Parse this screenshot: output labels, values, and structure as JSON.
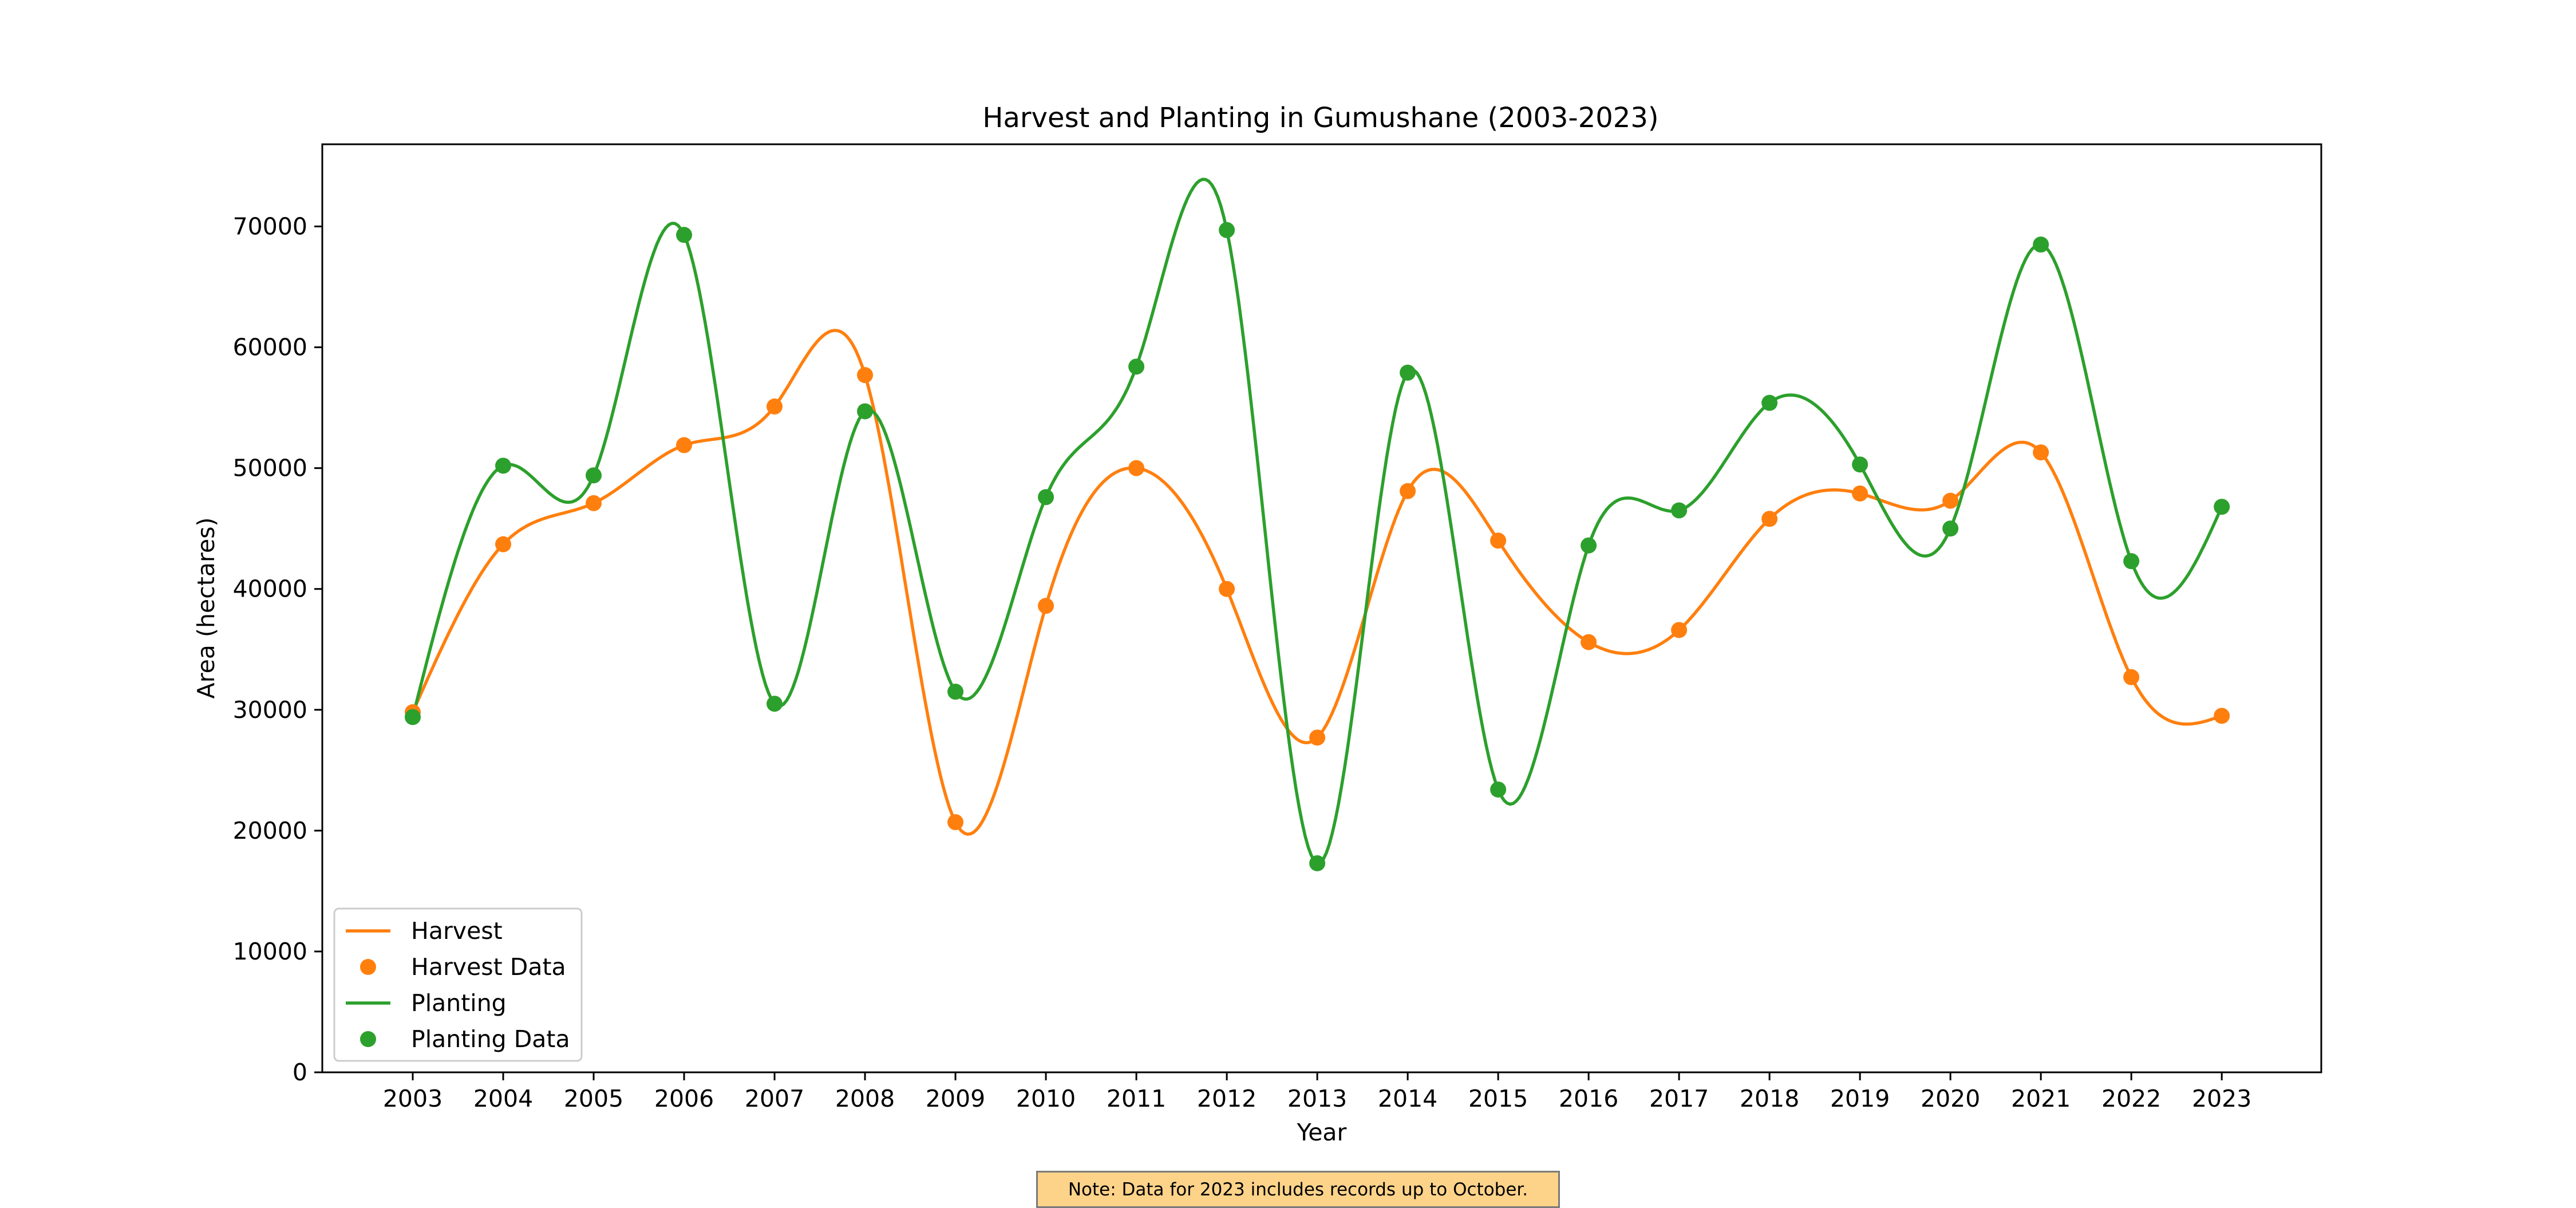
{
  "chart_data": {
    "type": "line",
    "title": "Harvest and Planting in Gumushane (2003-2023)",
    "xlabel": "Year",
    "ylabel": "Area (hectares)",
    "x": [
      2003,
      2004,
      2005,
      2006,
      2007,
      2008,
      2009,
      2010,
      2011,
      2012,
      2013,
      2014,
      2015,
      2016,
      2017,
      2018,
      2019,
      2020,
      2021,
      2022,
      2023
    ],
    "xlim": [
      2002,
      2024.1
    ],
    "ylim": [
      0,
      76800
    ],
    "yticks": [
      0,
      10000,
      20000,
      30000,
      40000,
      50000,
      60000,
      70000
    ],
    "grid": false,
    "legend_position": "lower-left",
    "smoothed": true,
    "series": [
      {
        "name": "Harvest",
        "points_name": "Harvest Data",
        "color": "#ff7f0e",
        "values": [
          29800,
          43700,
          47100,
          51900,
          55100,
          57700,
          20700,
          38600,
          50000,
          40000,
          27700,
          48100,
          44000,
          35600,
          36600,
          45800,
          47900,
          47300,
          51300,
          32700,
          29500
        ]
      },
      {
        "name": "Planting",
        "points_name": "Planting Data",
        "color": "#2ca02c",
        "values": [
          29400,
          50200,
          49400,
          69300,
          30500,
          54700,
          31500,
          47600,
          58400,
          69700,
          17300,
          57900,
          23400,
          43600,
          46500,
          55400,
          50300,
          45000,
          68500,
          42300,
          46800
        ]
      }
    ],
    "legend": [
      "Harvest",
      "Harvest Data",
      "Planting",
      "Planting Data"
    ],
    "note": "Note: Data for 2023 includes records up to October."
  }
}
